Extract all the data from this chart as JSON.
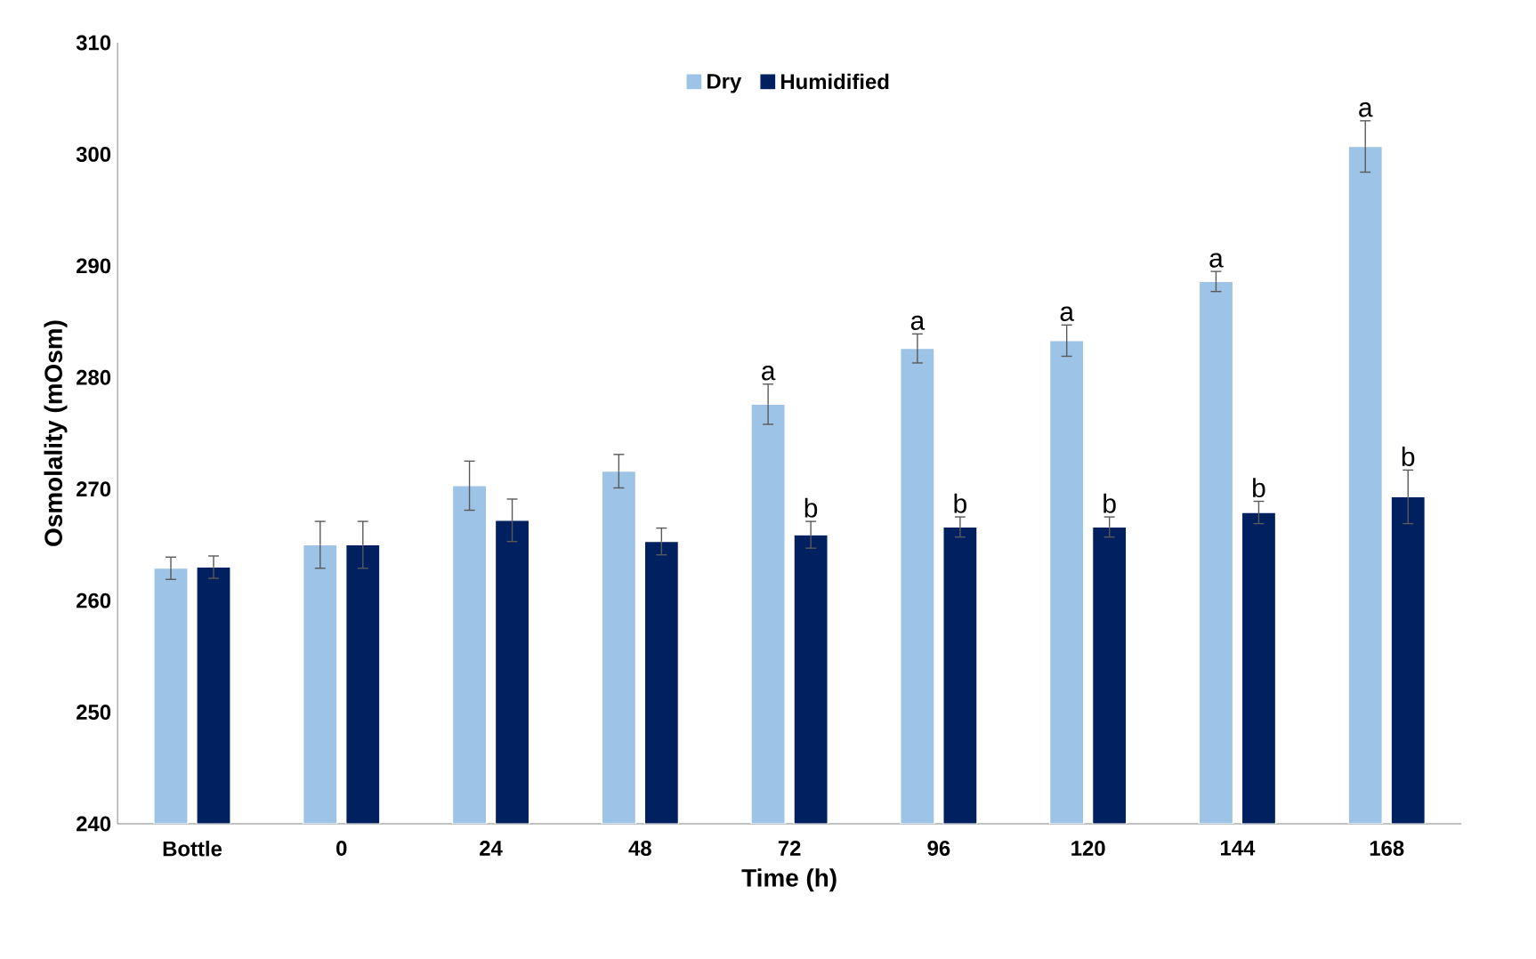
{
  "chart_data": {
    "type": "bar",
    "xlabel": "Time (h)",
    "ylabel": "Osmolality (mOsm)",
    "categories": [
      "Bottle",
      "0",
      "24",
      "48",
      "72",
      "96",
      "120",
      "144",
      "168"
    ],
    "series": [
      {
        "name": "Dry",
        "color": "#9dc3e6",
        "values": [
          262.9,
          265.0,
          270.3,
          271.6,
          277.6,
          282.6,
          283.3,
          288.6,
          300.7
        ],
        "errors": [
          1.0,
          2.1,
          2.2,
          1.5,
          1.8,
          1.3,
          1.4,
          0.9,
          2.3
        ]
      },
      {
        "name": "Humidified",
        "color": "#002060",
        "values": [
          263.0,
          265.0,
          267.2,
          265.3,
          265.9,
          266.6,
          266.6,
          267.9,
          269.3
        ],
        "errors": [
          1.0,
          2.1,
          1.9,
          1.2,
          1.2,
          0.9,
          0.9,
          1.0,
          2.4
        ]
      }
    ],
    "ylim": [
      240,
      310
    ],
    "yticks": [
      240,
      250,
      260,
      270,
      280,
      290,
      300,
      310
    ],
    "legend": "top",
    "annotations": [
      {
        "text": "a",
        "x": "72",
        "y": 277.6
      },
      {
        "text": "b",
        "x": "72",
        "y": 265.9
      },
      {
        "text": "a",
        "x": "96",
        "y": 282.6
      },
      {
        "text": "b",
        "x": "96",
        "y": 266.6
      },
      {
        "text": "a",
        "x": "120",
        "y": 283.3
      },
      {
        "text": "b",
        "x": "120",
        "y": 266.6
      },
      {
        "text": "a",
        "x": "144",
        "y": 288.6
      },
      {
        "text": "b",
        "x": "144",
        "y": 267.9
      },
      {
        "text": "a",
        "x": "168",
        "y": 300.7
      },
      {
        "text": "b",
        "x": "168",
        "y": 269.3
      }
    ]
  }
}
